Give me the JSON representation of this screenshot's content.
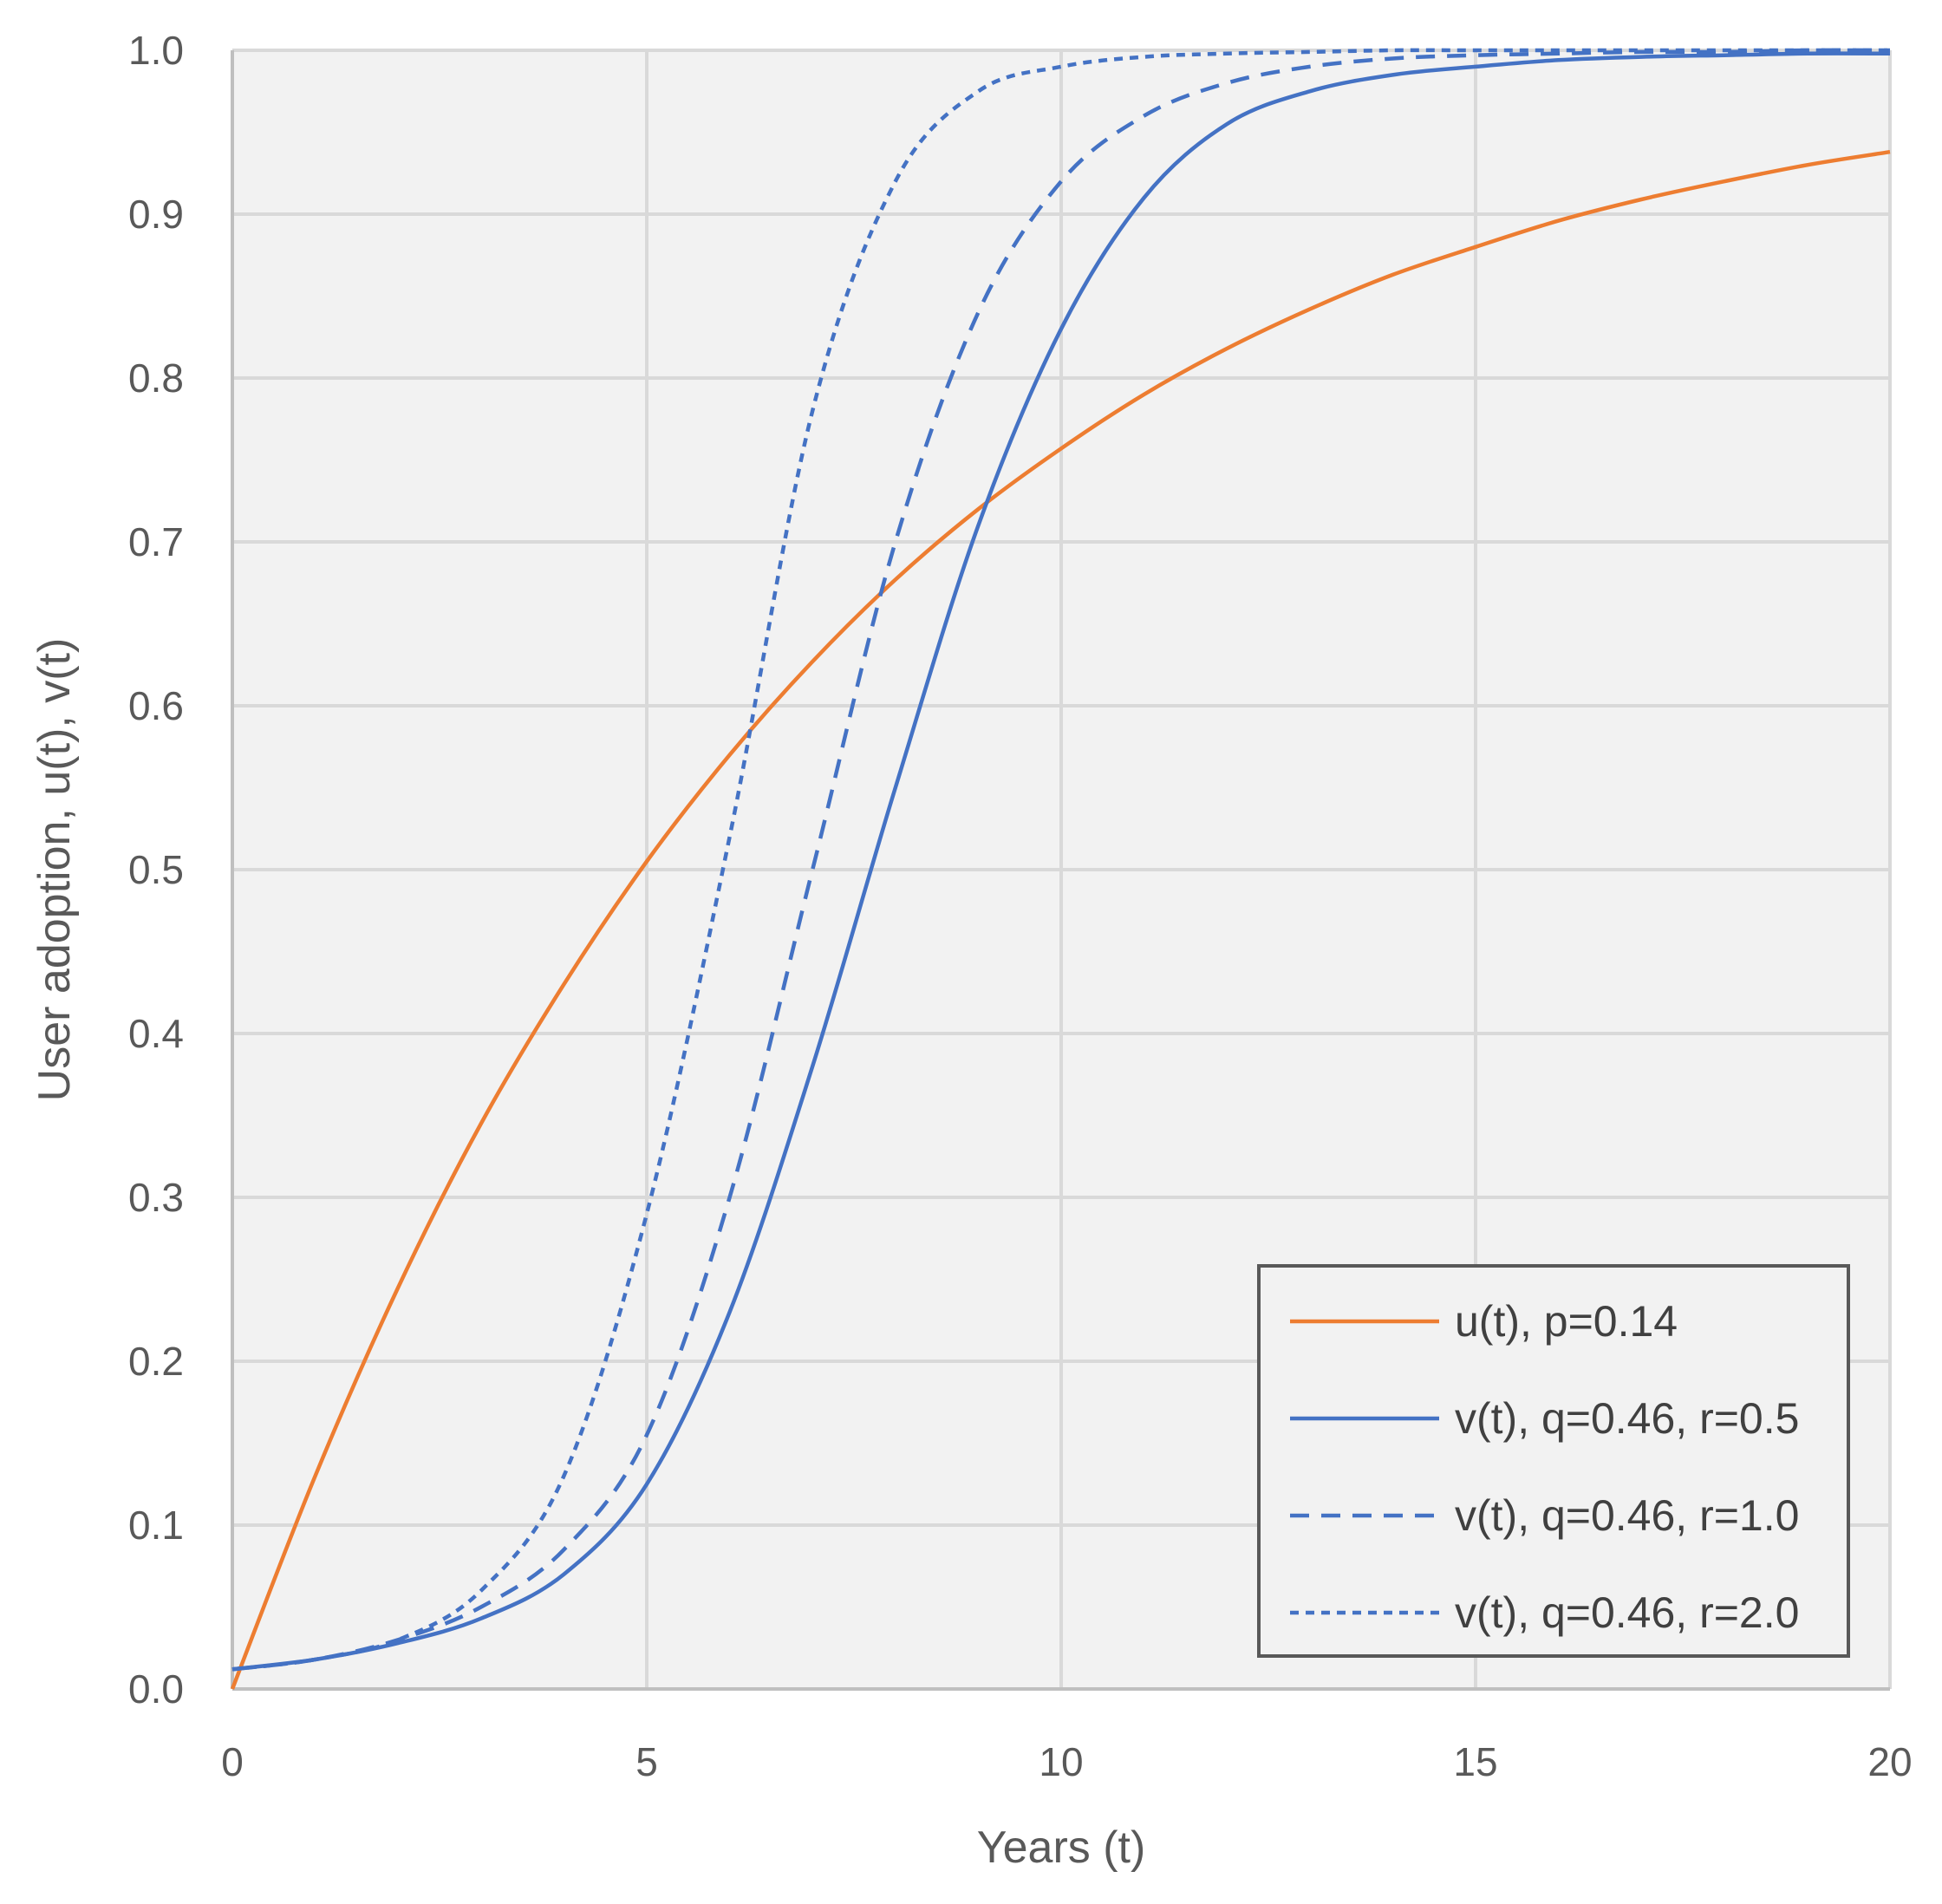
{
  "chart_data": {
    "type": "line",
    "title": "",
    "xlabel": "Years (t)",
    "ylabel": "User adoption, u(t), v(t)",
    "xlim": [
      0,
      20
    ],
    "ylim": [
      0.0,
      1.0
    ],
    "x_ticks": [
      "0",
      "5",
      "10",
      "15",
      "20"
    ],
    "y_ticks": [
      "0.0",
      "0.1",
      "0.2",
      "0.3",
      "0.4",
      "0.5",
      "0.6",
      "0.7",
      "0.8",
      "0.9",
      "1.0"
    ],
    "grid": true,
    "legend_position": "bottom-right",
    "x": [
      0,
      1,
      2,
      3,
      4,
      5,
      6,
      7,
      8,
      9,
      10,
      11,
      12,
      13,
      14,
      15,
      16,
      17,
      18,
      19,
      20
    ],
    "series": [
      {
        "name": "u(t), p=0.14",
        "color": "#ED7D31",
        "style": "solid",
        "values": [
          0.0,
          0.13,
          0.245,
          0.345,
          0.43,
          0.505,
          0.57,
          0.627,
          0.677,
          0.72,
          0.757,
          0.79,
          0.818,
          0.842,
          0.863,
          0.88,
          0.896,
          0.909,
          0.92,
          0.93,
          0.938
        ]
      },
      {
        "name": "v(t), q=0.46, r=0.5",
        "color": "#4472C4",
        "style": "solid",
        "values": [
          0.012,
          0.018,
          0.028,
          0.043,
          0.07,
          0.125,
          0.23,
          0.38,
          0.55,
          0.71,
          0.83,
          0.91,
          0.955,
          0.975,
          0.985,
          0.99,
          0.994,
          0.996,
          0.997,
          0.998,
          0.998
        ]
      },
      {
        "name": "v(t), q=0.46, r=1.0",
        "color": "#4472C4",
        "style": "dashed",
        "values": [
          0.012,
          0.018,
          0.03,
          0.05,
          0.085,
          0.155,
          0.3,
          0.5,
          0.7,
          0.84,
          0.92,
          0.96,
          0.98,
          0.99,
          0.995,
          0.997,
          0.998,
          0.999,
          0.999,
          1.0,
          1.0
        ]
      },
      {
        "name": "v(t), q=0.46, r=2.0",
        "color": "#4472C4",
        "style": "dotted",
        "values": [
          0.012,
          0.018,
          0.03,
          0.06,
          0.13,
          0.29,
          0.52,
          0.78,
          0.92,
          0.975,
          0.99,
          0.996,
          0.998,
          0.999,
          1.0,
          1.0,
          1.0,
          1.0,
          1.0,
          1.0,
          1.0
        ]
      }
    ]
  }
}
